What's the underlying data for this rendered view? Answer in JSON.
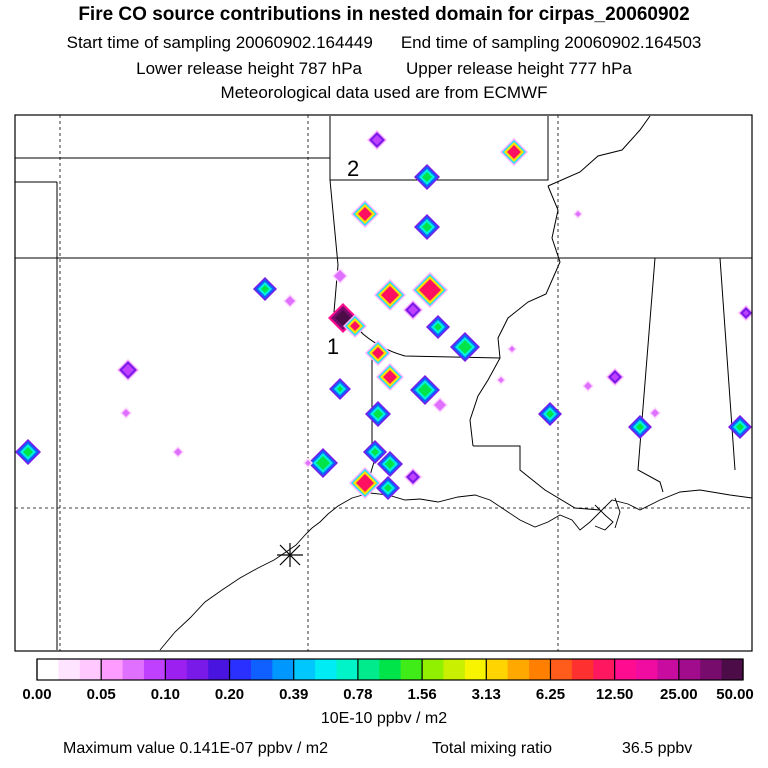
{
  "header": {
    "title": "Fire CO source contributions in nested domain for cirpas_20060902",
    "start_label": "Start time of sampling 20060902.164449",
    "end_label": "End time of sampling 20060902.164503",
    "lower_label": "Lower release height  787 hPa",
    "upper_label": "Upper release height  777 hPa",
    "met_label": "Meteorological data used are from ECMWF"
  },
  "map": {
    "labels": [
      "2",
      "1"
    ]
  },
  "colorbar": {
    "ticks": [
      "0.00",
      "0.05",
      "0.10",
      "0.20",
      "0.39",
      "0.78",
      "1.56",
      "3.13",
      "6.25",
      "12.50",
      "25.00",
      "50.00"
    ],
    "colors": [
      "#ffffff",
      "#ffe4ff",
      "#ffc8ff",
      "#ff9cff",
      "#e070ff",
      "#c040ff",
      "#9c20f0",
      "#7a1ae8",
      "#4a14e0",
      "#2a30ff",
      "#1060ff",
      "#0098ff",
      "#00c8ff",
      "#00ecf4",
      "#00f4c8",
      "#00ec8c",
      "#00e44a",
      "#40ec18",
      "#90f000",
      "#c8f000",
      "#f8f400",
      "#ffd400",
      "#ffa800",
      "#ff8000",
      "#ff5c1c",
      "#ff3030",
      "#ff1860",
      "#ff0c90",
      "#f00ca0",
      "#c80ca0",
      "#a00c8c",
      "#780c6c",
      "#4c0c48"
    ],
    "unit": "10E-10 ppbv / m2"
  },
  "footer": {
    "max_label": "Maximum value  0.141E-07 ppbv / m2",
    "total_label": "Total mixing ratio",
    "total_value": "36.5 ppbv"
  }
}
